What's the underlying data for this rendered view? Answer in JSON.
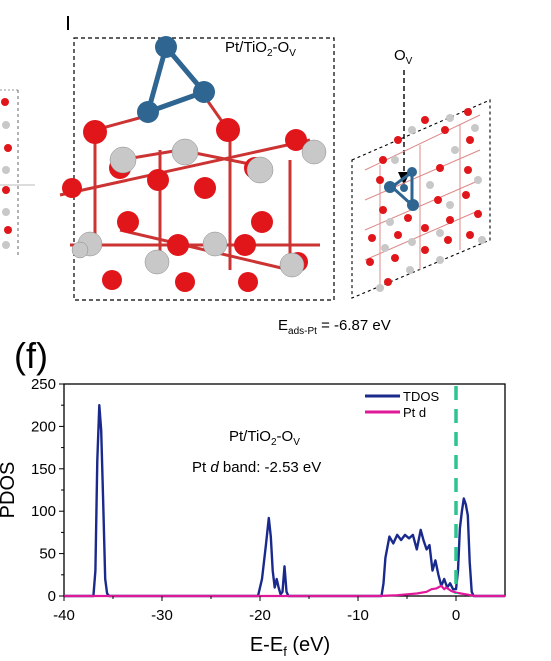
{
  "top_panel": {
    "structure_label": "Pt/TiO",
    "structure_sub": "2",
    "structure_suffix": "-O",
    "structure_suffix_sub": "V",
    "vacancy_label": "O",
    "vacancy_sub": "V",
    "energy_prefix": "E",
    "energy_sub": "ads-Pt",
    "energy_value": " = -6.87 eV",
    "colors": {
      "oxygen": "#e0161b",
      "titanium": "#c8c8c8",
      "platinum": "#2e6591"
    }
  },
  "panel_label": "(f)",
  "chart_data": {
    "type": "line",
    "ylabel": "PDOS",
    "xlabel_prefix": "E-E",
    "xlabel_sub": "f",
    "xlabel_suffix": " (eV)",
    "xlim": [
      -40,
      5
    ],
    "ylim": [
      0,
      250
    ],
    "xticks": [
      -40,
      -30,
      -20,
      -10,
      0
    ],
    "yticks": [
      0,
      50,
      100,
      150,
      200,
      250
    ],
    "annotation_title_prefix": "Pt/TiO",
    "annotation_title_sub": "2",
    "annotation_title_suffix": "-O",
    "annotation_title_sub2": "V",
    "annotation_band_prefix": "Pt ",
    "annotation_band_italic": "d",
    "annotation_band_suffix": " band: -2.53 eV",
    "fermi_level": 0,
    "fermi_color": "#2ec48f",
    "legend_position": "top-right",
    "series": [
      {
        "name": "TDOS",
        "color": "#1a2a8c",
        "x": [
          -40,
          -37.0,
          -36.8,
          -36.6,
          -36.4,
          -36.2,
          -36.0,
          -35.8,
          -35.6,
          -35.4,
          -35.2,
          -35.0,
          -22,
          -20.2,
          -19.8,
          -19.4,
          -19.1,
          -18.9,
          -18.7,
          -18.5,
          -18.3,
          -18.1,
          -17.9,
          -17.7,
          -17.5,
          -17.3,
          -17.1,
          -7.6,
          -7.4,
          -7.2,
          -6.8,
          -6.4,
          -6.0,
          -5.6,
          -5.2,
          -4.8,
          -4.4,
          -4.0,
          -3.6,
          -3.3,
          -3.0,
          -2.7,
          -2.4,
          -2.1,
          -1.8,
          -1.5,
          -1.2,
          -0.9,
          -0.6,
          -0.3,
          0.0,
          0.2,
          0.4,
          0.6,
          0.8,
          1.0,
          1.2,
          1.4,
          1.6,
          1.8,
          2.0,
          5
        ],
        "y": [
          0,
          0,
          30,
          160,
          225,
          195,
          110,
          20,
          3,
          0,
          0,
          0,
          0,
          0,
          20,
          60,
          92,
          70,
          30,
          10,
          20,
          10,
          2,
          5,
          35,
          5,
          0,
          0,
          15,
          45,
          70,
          62,
          72,
          66,
          72,
          68,
          72,
          55,
          78,
          65,
          55,
          60,
          30,
          42,
          25,
          12,
          20,
          10,
          15,
          8,
          8,
          30,
          80,
          100,
          115,
          108,
          95,
          40,
          5,
          0,
          0,
          0
        ]
      },
      {
        "name": "Pt d",
        "color": "#e0189a",
        "x": [
          -40,
          -8,
          -6,
          -5,
          -4,
          -3,
          -2.5,
          -2,
          -1.5,
          -1.2,
          -1,
          -0.5,
          0,
          0.5,
          1,
          1.5,
          2,
          5
        ],
        "y": [
          0,
          0,
          1,
          2,
          3,
          5,
          8,
          9,
          12,
          8,
          10,
          6,
          4,
          3,
          2,
          1,
          0,
          0
        ]
      }
    ]
  }
}
